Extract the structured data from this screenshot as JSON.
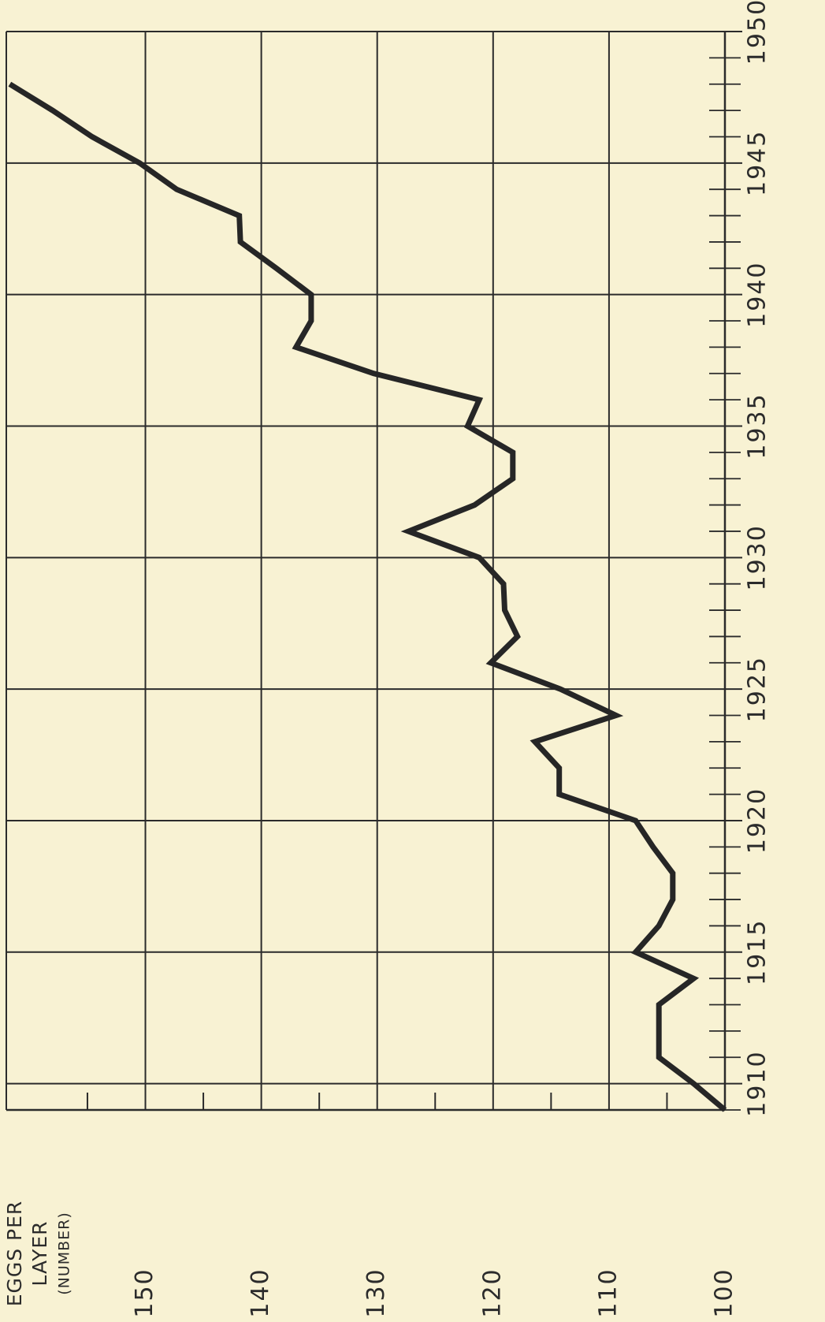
{
  "chart_data": {
    "type": "line",
    "orientation": "rotated",
    "ylabel_lines": [
      "EGGS PER",
      "LAYER",
      "(NUMBER)"
    ],
    "x": [
      1909,
      1910,
      1911,
      1912,
      1913,
      1914,
      1915,
      1916,
      1917,
      1918,
      1919,
      1920,
      1921,
      1922,
      1923,
      1924,
      1925,
      1926,
      1927,
      1928,
      1929,
      1930,
      1931,
      1932,
      1933,
      1934,
      1935,
      1936,
      1937,
      1938,
      1939,
      1940,
      1941,
      1942,
      1943,
      1944,
      1945,
      1946,
      1947,
      1948
    ],
    "values": [
      100,
      102.7,
      105.7,
      105.7,
      105.7,
      102.7,
      107.7,
      105.7,
      104.5,
      104.5,
      106.2,
      107.7,
      114.3,
      114.3,
      116.4,
      109.4,
      114.2,
      120.2,
      117.9,
      119,
      119.1,
      121.2,
      127.3,
      121.6,
      118.3,
      118.3,
      122.2,
      121.2,
      130.3,
      137,
      135.7,
      135.7,
      138.7,
      141.8,
      141.9,
      147.3,
      150.5,
      154.6,
      158,
      161.7
    ],
    "color": "#262626",
    "xlim": [
      1909,
      1950
    ],
    "xticks": [
      1910,
      1915,
      1920,
      1925,
      1930,
      1935,
      1940,
      1945,
      1950
    ],
    "xminorticks": [
      1909,
      1911,
      1912,
      1913,
      1914,
      1916,
      1917,
      1918,
      1919,
      1921,
      1922,
      1923,
      1924,
      1926,
      1927,
      1928,
      1929,
      1931,
      1932,
      1933,
      1934,
      1936,
      1937,
      1938,
      1939,
      1941,
      1942,
      1943,
      1944,
      1946,
      1947,
      1948,
      1949
    ],
    "ylim": [
      100,
      162
    ],
    "yticks": [
      100,
      110,
      120,
      130,
      140,
      150
    ],
    "yminorticks": [
      105,
      115,
      125,
      135,
      145,
      155
    ],
    "grid": true
  }
}
